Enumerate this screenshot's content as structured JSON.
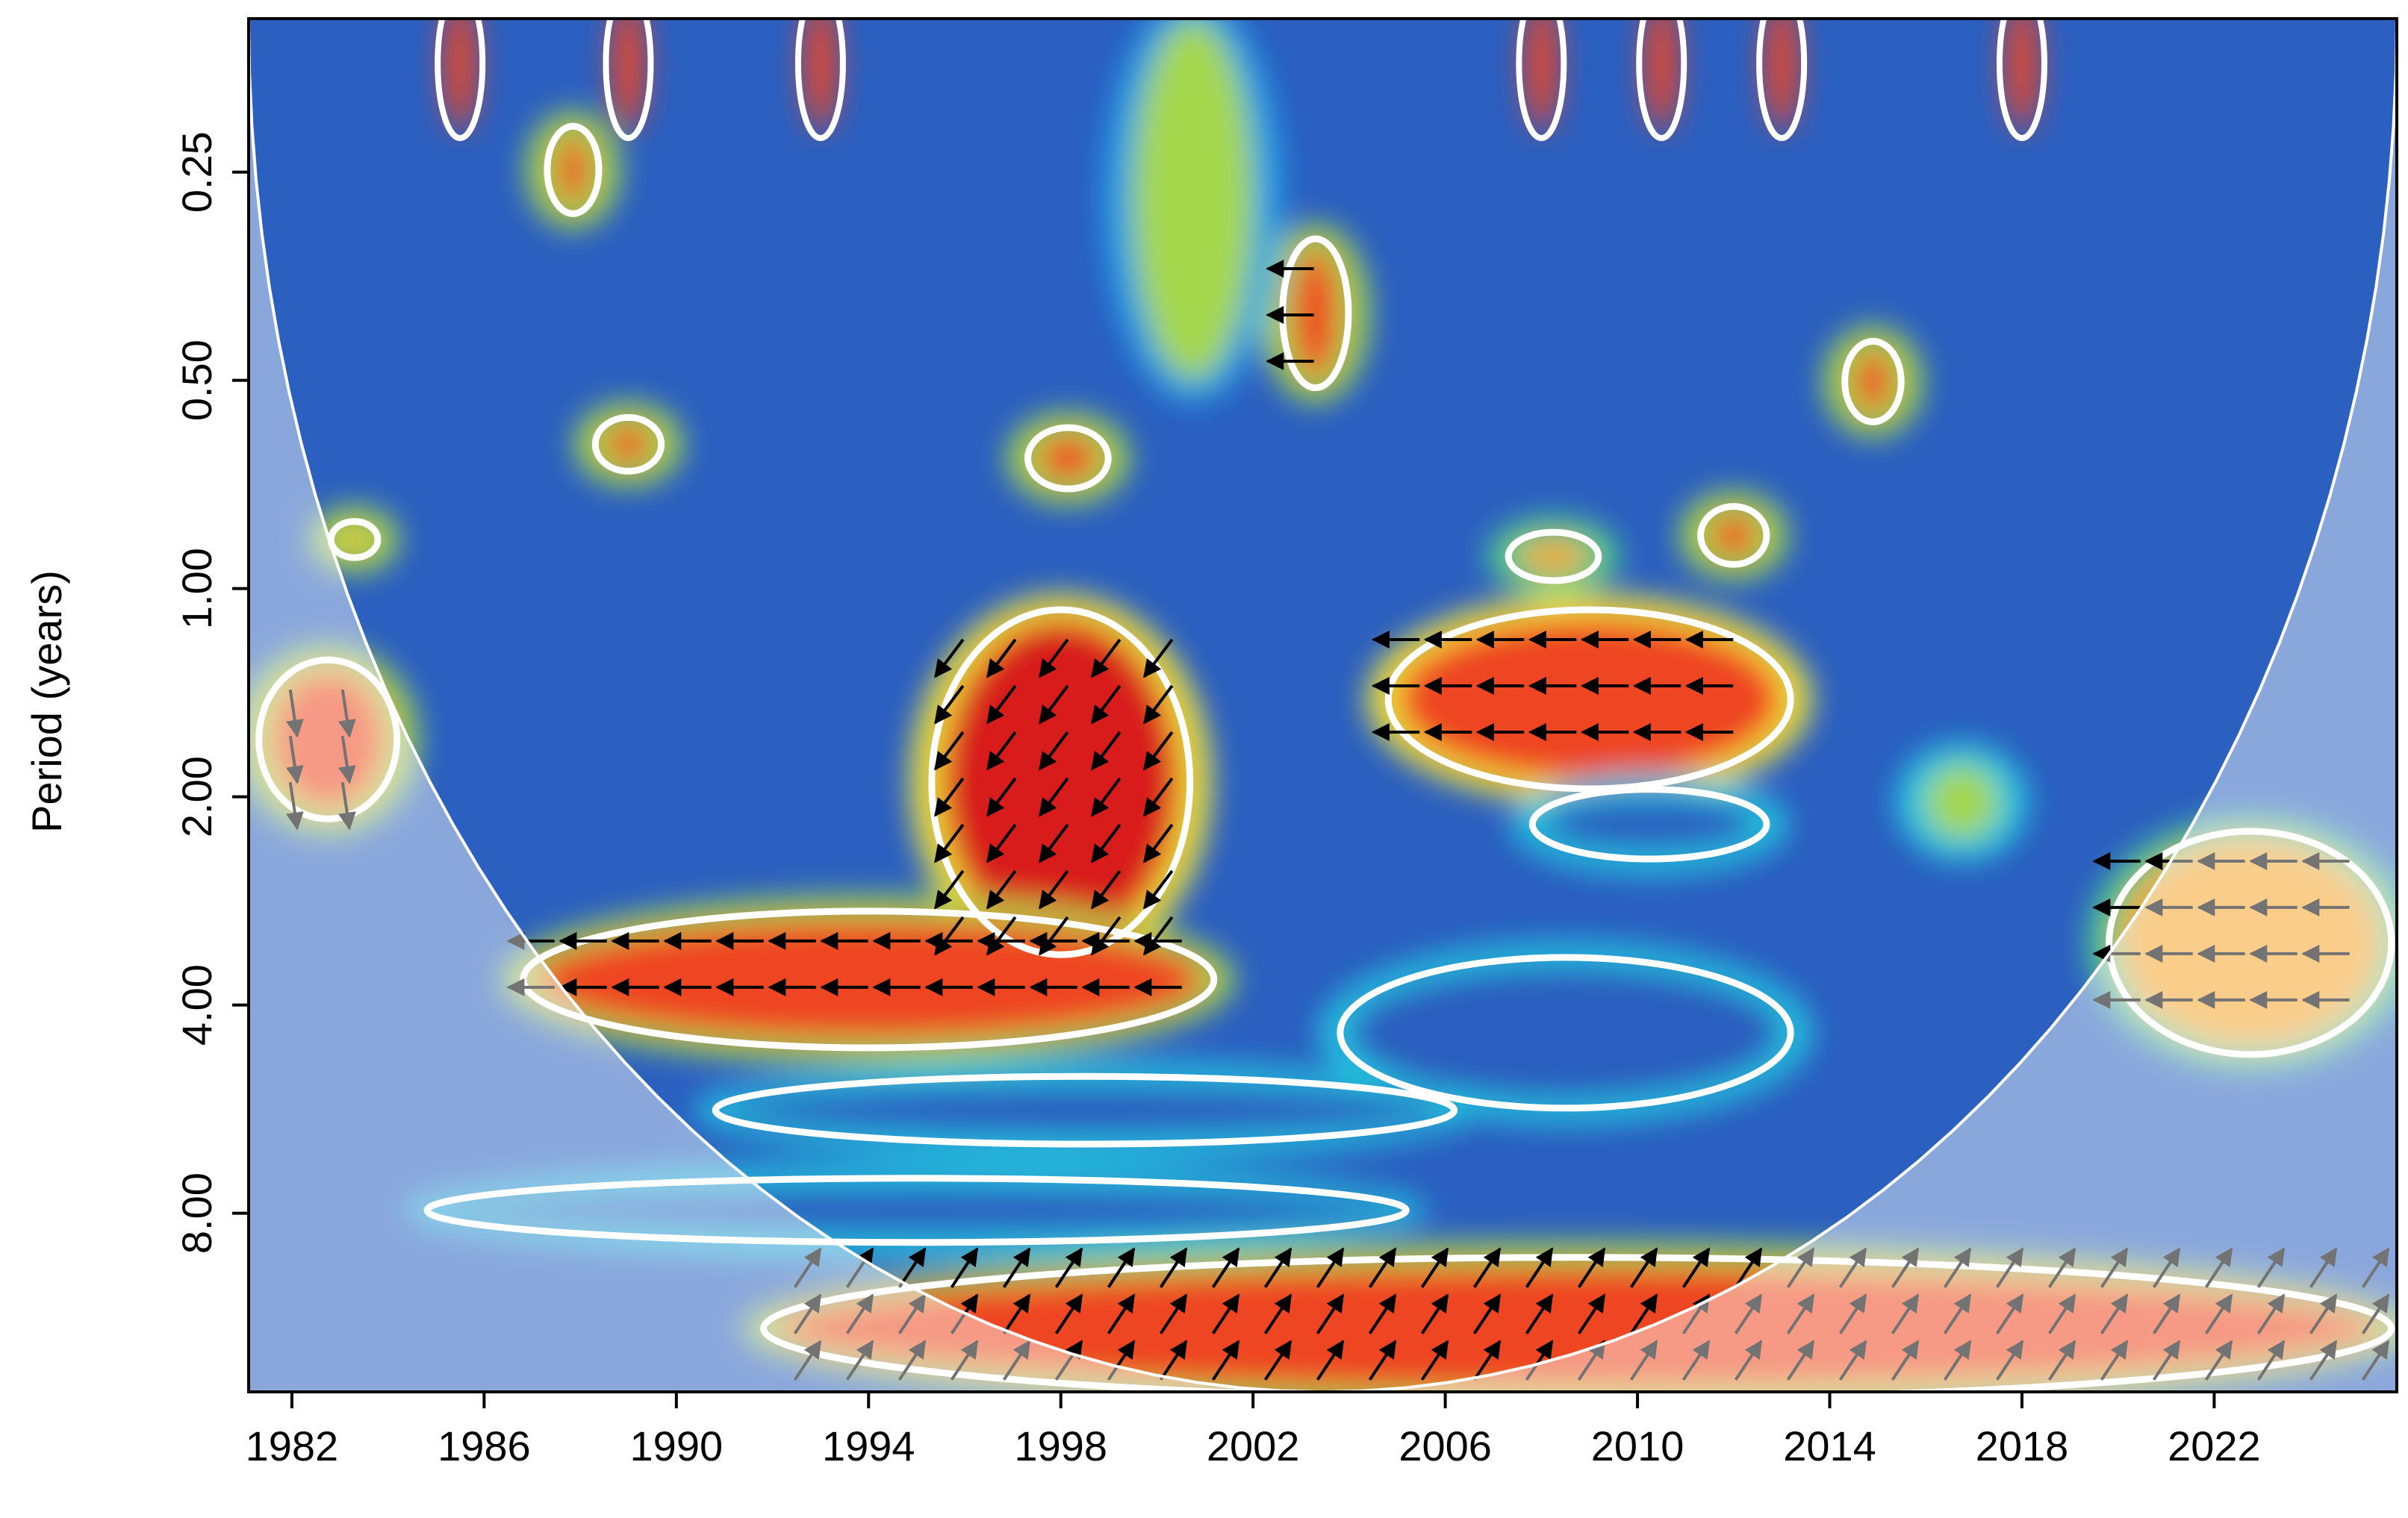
{
  "chart_data": {
    "type": "heatmap",
    "subtype": "wavelet-coherence",
    "title": "",
    "xlabel": "",
    "ylabel": "Period (years)",
    "x_ticks": [
      "1982",
      "1986",
      "1990",
      "1994",
      "1998",
      "2002",
      "2006",
      "2010",
      "2014",
      "2018",
      "2022"
    ],
    "x_tick_values": [
      1982,
      1986,
      1990,
      1994,
      1998,
      2002,
      2006,
      2010,
      2014,
      2018,
      2022
    ],
    "xlim": [
      1981.1,
      2025.8
    ],
    "y_ticks": [
      "0.25",
      "0.50",
      "1.00",
      "2.00",
      "4.00",
      "8.00"
    ],
    "y_tick_values": [
      0.25,
      0.5,
      1,
      2,
      4,
      8
    ],
    "y_scale": "log2",
    "ylim": [
      0.15,
      14.5
    ],
    "y_inverted": true,
    "colorscale": [
      "#1f2f8c",
      "#2b5fc0",
      "#1fa0e6",
      "#20c8e0",
      "#4fd08a",
      "#a6d84e",
      "#f3e83a",
      "#f6a52b",
      "#ee4424",
      "#d81f1f"
    ],
    "cone_of_influence_color": "#ffffff",
    "significance_contour_color": "#ffffff",
    "regions": [
      {
        "x": [
          1995.5,
          2000.5
        ],
        "y": [
          1.1,
          3.3
        ],
        "level": 0.95,
        "arrow": "down-left"
      },
      {
        "x": [
          2005.0,
          2013.0
        ],
        "y": [
          1.1,
          1.9
        ],
        "level": 0.93,
        "arrow": "left"
      },
      {
        "x": [
          1987.0,
          2001.0
        ],
        "y": [
          3.0,
          4.5
        ],
        "level": 0.9,
        "arrow": "left"
      },
      {
        "x": [
          1981.5,
          1984.0
        ],
        "y": [
          1.3,
          2.1
        ],
        "level": 0.85,
        "arrow": "down"
      },
      {
        "x": [
          1992.0,
          2025.5
        ],
        "y": [
          9.5,
          14.5
        ],
        "level": 0.85,
        "arrow": "up-right"
      },
      {
        "x": [
          2020.0,
          2025.5
        ],
        "y": [
          2.3,
          4.6
        ],
        "level": 0.75,
        "arrow": "left"
      },
      {
        "x": [
          2004.0,
          2013.0
        ],
        "y": [
          3.5,
          5.5
        ],
        "level": 0.08,
        "arrow": ""
      },
      {
        "x": [
          1991.0,
          2006.0
        ],
        "y": [
          5.2,
          6.2
        ],
        "level": 0.1,
        "arrow": ""
      },
      {
        "x": [
          1985.0,
          2005.0
        ],
        "y": [
          7.3,
          8.6
        ],
        "level": 0.12,
        "arrow": ""
      },
      {
        "x": [
          2008.0,
          2012.5
        ],
        "y": [
          2.0,
          2.4
        ],
        "level": 0.12,
        "arrow": ""
      },
      {
        "x": [
          1988.5,
          1989.5
        ],
        "y": [
          0.58,
          0.66
        ],
        "level": 0.9,
        "arrow": ""
      },
      {
        "x": [
          1997.5,
          1998.8
        ],
        "y": [
          0.6,
          0.7
        ],
        "level": 0.85,
        "arrow": ""
      },
      {
        "x": [
          2002.8,
          2003.8
        ],
        "y": [
          0.32,
          0.5
        ],
        "level": 0.9,
        "arrow": "left"
      },
      {
        "x": [
          2011.5,
          2012.5
        ],
        "y": [
          0.78,
          0.9
        ],
        "level": 0.85,
        "arrow": ""
      },
      {
        "x": [
          2014.5,
          2015.3
        ],
        "y": [
          0.45,
          0.56
        ],
        "level": 0.85,
        "arrow": ""
      },
      {
        "x": [
          1987.5,
          1988.2
        ],
        "y": [
          0.22,
          0.28
        ],
        "level": 0.85,
        "arrow": ""
      },
      {
        "x": [
          1983.0,
          1983.6
        ],
        "y": [
          0.82,
          0.88
        ],
        "level": 0.8,
        "arrow": ""
      },
      {
        "x": [
          1999.5,
          2002.0
        ],
        "y": [
          0.15,
          0.5
        ],
        "level": 0.55,
        "arrow": ""
      },
      {
        "x": [
          2016.0,
          2017.5
        ],
        "y": [
          1.8,
          2.3
        ],
        "level": 0.6,
        "arrow": ""
      },
      {
        "x": [
          2007.5,
          2009.0
        ],
        "y": [
          0.85,
          0.95
        ],
        "level": 0.75,
        "arrow": ""
      }
    ],
    "top_spikes": [
      1985.5,
      1989.0,
      1993.0,
      2008.0,
      2010.5,
      2013.0,
      2018.0
    ],
    "grid": false,
    "legend": "none"
  }
}
